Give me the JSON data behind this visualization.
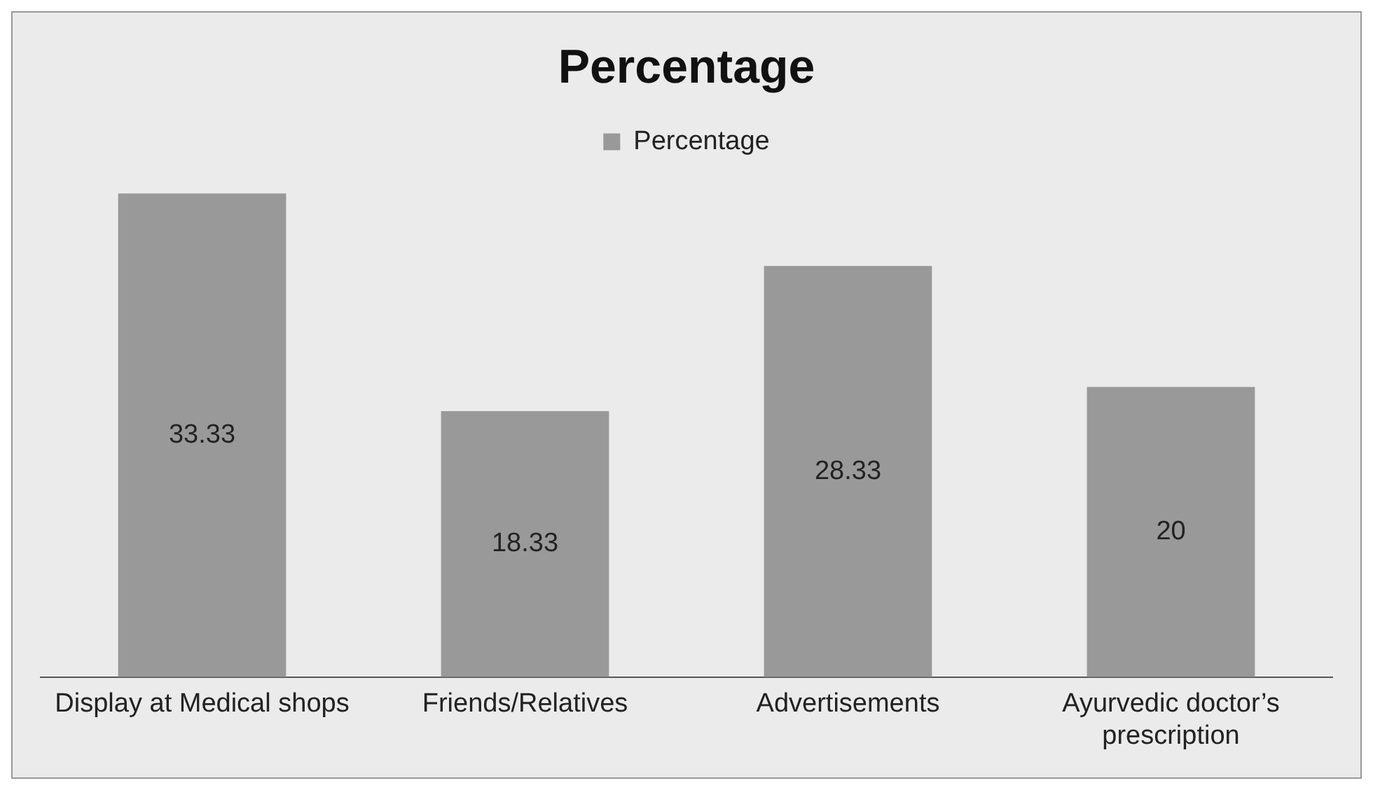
{
  "chart_data": {
    "type": "bar",
    "title": "Percentage",
    "categories": [
      "Display at Medical shops",
      "Friends/Relatives",
      "Advertisements",
      "Ayurvedic doctor’s prescription"
    ],
    "series": [
      {
        "name": "Percentage",
        "color": "#999999",
        "values": [
          33.33,
          18.33,
          28.33,
          20
        ]
      }
    ],
    "data_labels": true,
    "legend": "top",
    "grid": false,
    "tick_labels": "x"
  }
}
